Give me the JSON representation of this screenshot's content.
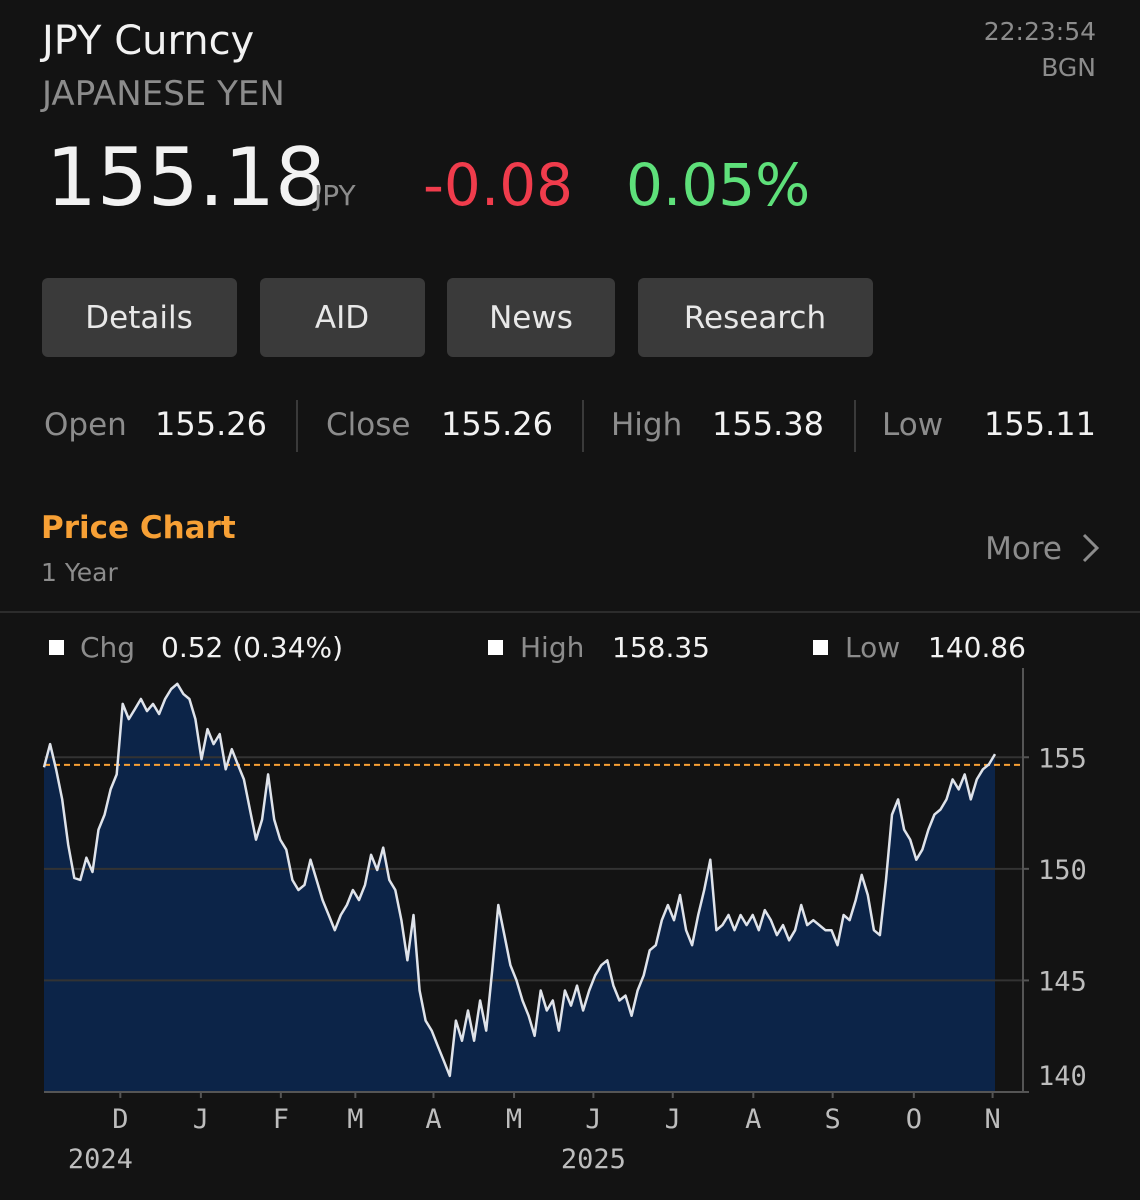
{
  "header": {
    "title": "JPY Curncy",
    "subtitle": "JAPANESE YEN",
    "time": "22:23:54",
    "source": "BGN",
    "price": 155.18,
    "currency": "JPY",
    "change": -0.08,
    "change_pct": "0.05%"
  },
  "buttons": [
    "Details",
    "AID",
    "News",
    "Research"
  ],
  "stats": [
    {
      "label": "Open",
      "value": 155.26
    },
    {
      "label": "Close",
      "value": 155.26
    },
    {
      "label": "High",
      "value": 155.38
    },
    {
      "label": "Low",
      "value": 155.11
    }
  ],
  "section": {
    "title": "Price Chart",
    "period": "1 Year",
    "more": "More"
  },
  "chart_data": {
    "type": "area",
    "legend": [
      {
        "label": "Chg",
        "value": "0.52 (0.34%)"
      },
      {
        "label": "High",
        "value": 158.35
      },
      {
        "label": "Low",
        "value": 140.86
      }
    ],
    "color": "#dfe3ea",
    "fill": "#0c2448",
    "values": [
      154.55,
      155.59,
      154.46,
      153.11,
      151.08,
      149.59,
      149.5,
      150.5,
      149.86,
      151.76,
      152.43,
      153.56,
      154.23,
      157.39,
      156.71,
      157.16,
      157.61,
      157.07,
      157.39,
      156.94,
      157.61,
      158.06,
      158.29,
      157.84,
      157.61,
      156.71,
      154.91,
      156.26,
      155.59,
      156.04,
      154.46,
      155.36,
      154.68,
      154.01,
      152.66,
      151.31,
      152.21,
      154.23,
      152.21,
      151.31,
      150.86,
      149.5,
      149.05,
      149.28,
      150.41,
      149.5,
      148.6,
      147.93,
      147.25,
      147.93,
      148.38,
      149.05,
      148.6,
      149.28,
      150.63,
      149.95,
      150.95,
      149.5,
      149.05,
      147.7,
      145.9,
      147.93,
      144.55,
      143.2,
      142.75,
      142.07,
      141.4,
      140.72,
      143.2,
      142.3,
      143.65,
      142.3,
      144.1,
      142.75,
      145.45,
      148.38,
      147.03,
      145.68,
      145.0,
      144.1,
      143.42,
      142.52,
      144.55,
      143.65,
      144.1,
      142.75,
      144.55,
      143.87,
      144.77,
      143.65,
      144.55,
      145.23,
      145.68,
      145.9,
      144.77,
      144.1,
      144.32,
      143.42,
      144.55,
      145.23,
      146.35,
      146.58,
      147.7,
      148.38,
      147.7,
      148.83,
      147.25,
      146.58,
      147.93,
      149.05,
      150.41,
      147.25,
      147.48,
      147.93,
      147.25,
      147.93,
      147.48,
      147.93,
      147.25,
      148.15,
      147.7,
      147.03,
      147.48,
      146.8,
      147.25,
      148.38,
      147.48,
      147.7,
      147.48,
      147.25,
      147.25,
      146.58,
      147.93,
      147.7,
      148.6,
      149.73,
      148.83,
      147.25,
      147.03,
      149.5,
      152.43,
      153.11,
      151.76,
      151.31,
      150.41,
      150.86,
      151.76,
      152.43,
      152.66,
      153.11,
      154.01,
      153.56,
      154.23,
      153.11,
      154.01,
      154.46,
      154.68,
      155.14
    ],
    "reference_line": 154.66,
    "reference_color": "#f7a035",
    "ylim": [
      140,
      159
    ],
    "yticks": [
      140,
      145,
      150,
      155
    ],
    "grid": true,
    "xticks": [
      {
        "value": 12.6,
        "label": "D"
      },
      {
        "value": 25.9,
        "label": "J"
      },
      {
        "value": 39.1,
        "label": "F"
      },
      {
        "value": 51.4,
        "label": "M"
      },
      {
        "value": 64.3,
        "label": "A"
      },
      {
        "value": 77.6,
        "label": "M"
      },
      {
        "value": 90.7,
        "label": "J"
      },
      {
        "value": 103.8,
        "label": "J"
      },
      {
        "value": 117.1,
        "label": "A"
      },
      {
        "value": 130.2,
        "label": "S"
      },
      {
        "value": 143.6,
        "label": "O"
      },
      {
        "value": 156.6,
        "label": "N"
      }
    ],
    "year_labels": [
      {
        "value": 9.3,
        "label": "2024"
      },
      {
        "value": 90.7,
        "label": "2025"
      }
    ]
  }
}
